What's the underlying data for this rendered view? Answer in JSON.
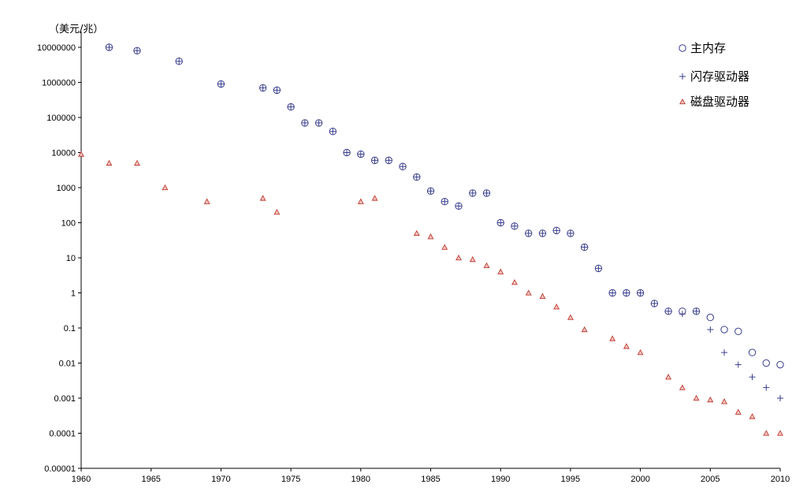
{
  "chart_data": {
    "type": "scatter",
    "yscale": "log",
    "ylim": [
      1e-05,
      10000000
    ],
    "xlim": [
      1960,
      2010
    ],
    "grid": false,
    "legend_position": "top-right",
    "y_unit_label": "（美元/兆）",
    "x_tick_labels": [
      "1960",
      "1965",
      "1970",
      "1975",
      "1980",
      "1985",
      "1990",
      "1995",
      "2000",
      "2005",
      "2010"
    ],
    "y_tick_labels": [
      "0.00001",
      "0.0001",
      "0.001",
      "0.01",
      "0.1",
      "1",
      "10",
      "100",
      "1000",
      "10000",
      "100000",
      "1000000",
      "10000000"
    ],
    "series": [
      {
        "name": "主内存",
        "marker": "circle",
        "color": "#3a3f8f",
        "points": [
          [
            1962,
            10000000
          ],
          [
            1964,
            8000000
          ],
          [
            1967,
            4000000
          ],
          [
            1970,
            900000
          ],
          [
            1973,
            700000
          ],
          [
            1974,
            600000
          ],
          [
            1975,
            200000
          ],
          [
            1976,
            70000
          ],
          [
            1977,
            70000
          ],
          [
            1978,
            40000
          ],
          [
            1979,
            10000
          ],
          [
            1980,
            9000
          ],
          [
            1981,
            6000
          ],
          [
            1982,
            6000
          ],
          [
            1983,
            4000
          ],
          [
            1984,
            2000
          ],
          [
            1985,
            800
          ],
          [
            1986,
            400
          ],
          [
            1987,
            300
          ],
          [
            1988,
            700
          ],
          [
            1989,
            700
          ],
          [
            1990,
            100
          ],
          [
            1991,
            80
          ],
          [
            1992,
            50
          ],
          [
            1993,
            50
          ],
          [
            1994,
            60
          ],
          [
            1995,
            50
          ],
          [
            1996,
            20
          ],
          [
            1997,
            5
          ],
          [
            1998,
            1
          ],
          [
            1999,
            1
          ],
          [
            2000,
            1
          ],
          [
            2001,
            0.5
          ],
          [
            2002,
            0.3
          ],
          [
            2003,
            0.3
          ],
          [
            2004,
            0.3
          ],
          [
            2005,
            0.2
          ],
          [
            2006,
            0.09
          ],
          [
            2007,
            0.08
          ],
          [
            2008,
            0.02
          ],
          [
            2009,
            0.01
          ],
          [
            2010,
            0.009
          ]
        ]
      },
      {
        "name": "闪存驱动器",
        "marker": "plus",
        "color": "#3a3f8f",
        "points": [
          [
            1962,
            10000000
          ],
          [
            1964,
            8000000
          ],
          [
            1967,
            4000000
          ],
          [
            1970,
            900000
          ],
          [
            1973,
            700000
          ],
          [
            1974,
            600000
          ],
          [
            1975,
            200000
          ],
          [
            1976,
            70000
          ],
          [
            1977,
            70000
          ],
          [
            1978,
            40000
          ],
          [
            1979,
            10000
          ],
          [
            1980,
            9000
          ],
          [
            1981,
            6000
          ],
          [
            1982,
            6000
          ],
          [
            1983,
            4000
          ],
          [
            1984,
            2000
          ],
          [
            1985,
            800
          ],
          [
            1986,
            400
          ],
          [
            1987,
            300
          ],
          [
            1988,
            700
          ],
          [
            1989,
            700
          ],
          [
            1990,
            100
          ],
          [
            1991,
            80
          ],
          [
            1992,
            50
          ],
          [
            1993,
            50
          ],
          [
            1994,
            60
          ],
          [
            1995,
            50
          ],
          [
            1996,
            20
          ],
          [
            1997,
            5
          ],
          [
            1998,
            1
          ],
          [
            1999,
            1
          ],
          [
            2000,
            1
          ],
          [
            2001,
            0.5
          ],
          [
            2002,
            0.3
          ],
          [
            2003,
            0.25
          ],
          [
            2004,
            0.3
          ],
          [
            2005,
            0.09
          ],
          [
            2006,
            0.02
          ],
          [
            2007,
            0.009
          ],
          [
            2008,
            0.004
          ],
          [
            2009,
            0.002
          ],
          [
            2010,
            0.001
          ]
        ]
      },
      {
        "name": "磁盘驱动器",
        "marker": "triangle",
        "color": "#c0392b",
        "points": [
          [
            1960,
            9000
          ],
          [
            1962,
            5000
          ],
          [
            1964,
            5000
          ],
          [
            1966,
            1000
          ],
          [
            1969,
            400
          ],
          [
            1973,
            500
          ],
          [
            1974,
            200
          ],
          [
            1980,
            400
          ],
          [
            1981,
            500
          ],
          [
            1984,
            50
          ],
          [
            1985,
            40
          ],
          [
            1986,
            20
          ],
          [
            1987,
            10
          ],
          [
            1988,
            9
          ],
          [
            1989,
            6
          ],
          [
            1990,
            4
          ],
          [
            1991,
            2
          ],
          [
            1992,
            1
          ],
          [
            1993,
            0.8
          ],
          [
            1994,
            0.4
          ],
          [
            1995,
            0.2
          ],
          [
            1996,
            0.09
          ],
          [
            1998,
            0.05
          ],
          [
            1999,
            0.03
          ],
          [
            2000,
            0.02
          ],
          [
            2002,
            0.004
          ],
          [
            2003,
            0.002
          ],
          [
            2004,
            0.001
          ],
          [
            2005,
            0.0009
          ],
          [
            2006,
            0.0008
          ],
          [
            2007,
            0.0004
          ],
          [
            2008,
            0.0003
          ],
          [
            2009,
            0.0001
          ],
          [
            2010,
            0.0001
          ]
        ]
      }
    ]
  }
}
